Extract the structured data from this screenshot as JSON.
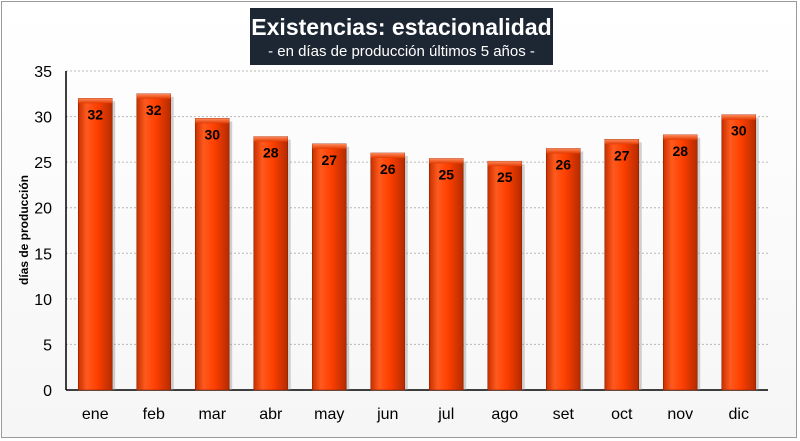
{
  "chart_data": {
    "type": "bar",
    "title": "Existencias: estacionalidad",
    "subtitle": "- en días de producción últimos 5 años -",
    "ylabel": "días de producción",
    "xlabel": "",
    "ylim": [
      0,
      35
    ],
    "yticks": [
      0,
      5,
      10,
      15,
      20,
      25,
      30,
      35
    ],
    "grid": true,
    "categories": [
      "ene",
      "feb",
      "mar",
      "abr",
      "may",
      "jun",
      "jul",
      "ago",
      "set",
      "oct",
      "nov",
      "dic"
    ],
    "values": [
      32,
      32.5,
      29.8,
      27.8,
      27,
      26,
      25.4,
      25.1,
      26.5,
      27.5,
      28,
      30.2
    ],
    "labels": [
      "32",
      "32",
      "30",
      "28",
      "27",
      "26",
      "25",
      "25",
      "26",
      "27",
      "28",
      "30"
    ],
    "bar_color": "#ff4000",
    "bar_color_light": "#ff6a33",
    "bar_color_dark": "#b32a00"
  }
}
